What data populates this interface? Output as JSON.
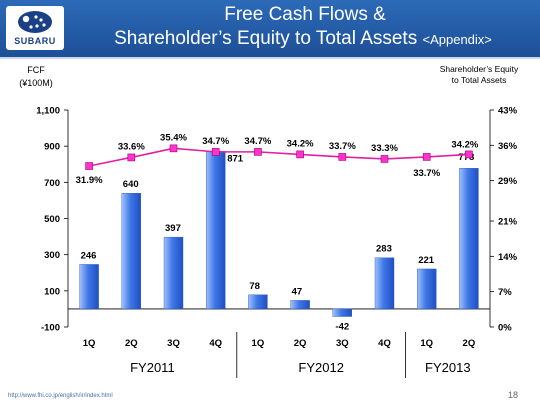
{
  "header": {
    "logo_text": "SUBARU",
    "title_line1": "Free Cash Flows &",
    "title_line2": "Shareholder’s Equity to Total Assets",
    "title_suffix": "<Appendix>"
  },
  "footer": {
    "url": "http://www.fhi.co.jp/english/ir/index.html",
    "page_number": "18"
  },
  "colors": {
    "header_bg": "#1d4f97",
    "bar": "#3f77e6",
    "line": "#e0209f",
    "marker": "#ff33cc"
  },
  "chart_data": {
    "type": "bar",
    "categories": [
      "1Q",
      "2Q",
      "3Q",
      "4Q",
      "1Q",
      "2Q",
      "3Q",
      "4Q",
      "1Q",
      "2Q"
    ],
    "groups": [
      {
        "label": "FY2011",
        "start": 0,
        "end": 3
      },
      {
        "label": "FY2012",
        "start": 4,
        "end": 7
      },
      {
        "label": "FY2013",
        "start": 8,
        "end": 9
      }
    ],
    "ylabel_left": "FCF\n(¥100M)",
    "ylabel_right": "Shareholder’s Equity\nto Total Assets",
    "ylim": [
      -100,
      1100
    ],
    "yticks": [
      -100,
      100,
      300,
      500,
      700,
      900,
      1100
    ],
    "ytick_labels": [
      "-100",
      "100",
      "300",
      "500",
      "700",
      "900",
      "1,100"
    ],
    "y2lim": [
      0,
      43
    ],
    "y2ticks": [
      0,
      7,
      14,
      21,
      29,
      36,
      43
    ],
    "y2tick_labels": [
      "0%",
      "7%",
      "14%",
      "21%",
      "29%",
      "36%",
      "43%"
    ],
    "series": [
      {
        "type": "bar",
        "axis": "left",
        "values": [
          246,
          640,
          397,
          871,
          78,
          47,
          -42,
          283,
          221,
          778
        ],
        "labels": [
          "246",
          "640",
          "397",
          "871",
          "78",
          "47",
          "-42",
          "283",
          "221",
          "778"
        ]
      },
      {
        "type": "line",
        "axis": "right",
        "values": [
          31.9,
          33.6,
          35.4,
          34.7,
          34.7,
          34.2,
          33.7,
          33.3,
          33.7,
          34.2
        ],
        "labels": [
          "31.9%",
          "33.6%",
          "35.4%",
          "34.7%",
          "34.7%",
          "34.2%",
          "33.7%",
          "33.3%",
          "33.7%",
          "34.2%"
        ]
      }
    ],
    "grid": false
  }
}
